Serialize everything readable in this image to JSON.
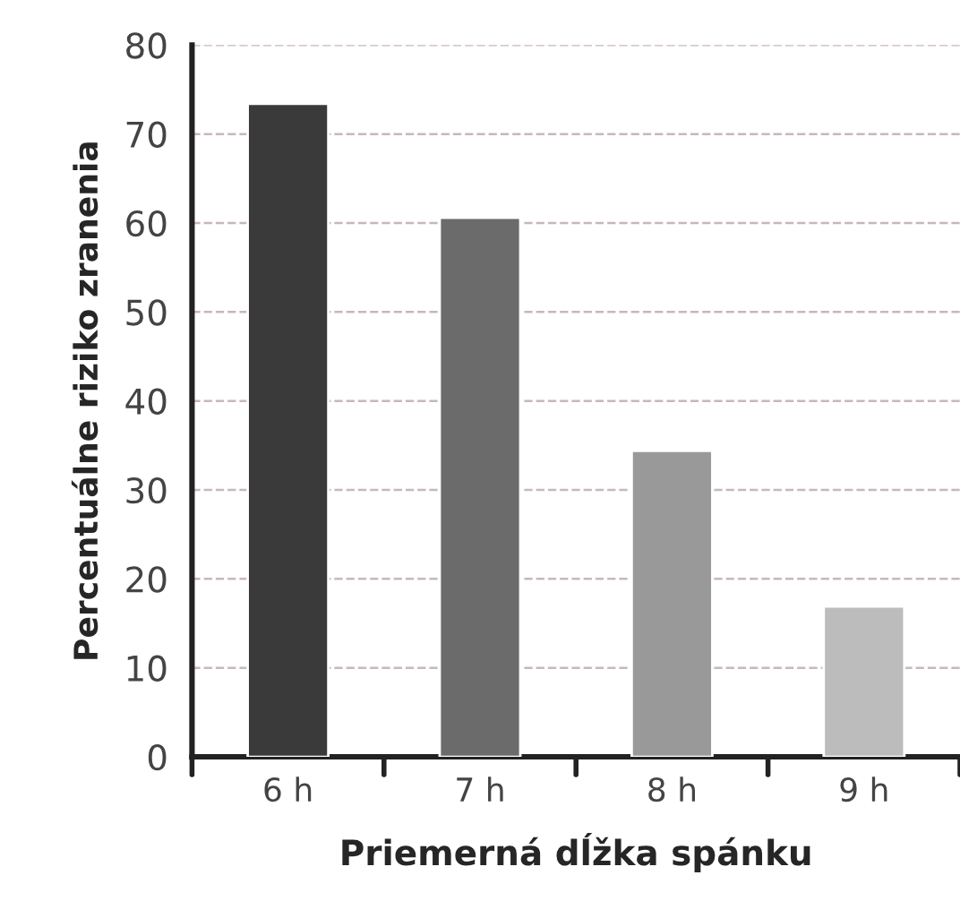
{
  "chart_data": {
    "type": "bar",
    "xlabel": "Priemerná dĺžka spánku",
    "ylabel": "Percentuálne riziko zranenia",
    "categories": [
      "6 h",
      "7 h",
      "8 h",
      "9 h"
    ],
    "values": [
      73.4,
      60.6,
      34.4,
      16.9
    ],
    "colors": [
      "#3a3a3a",
      "#6b6b6b",
      "#999999",
      "#bcbcbc"
    ],
    "ylim": [
      0,
      80
    ],
    "yticks": [
      0,
      10,
      20,
      30,
      40,
      50,
      60,
      70,
      80
    ],
    "grid": "y"
  }
}
